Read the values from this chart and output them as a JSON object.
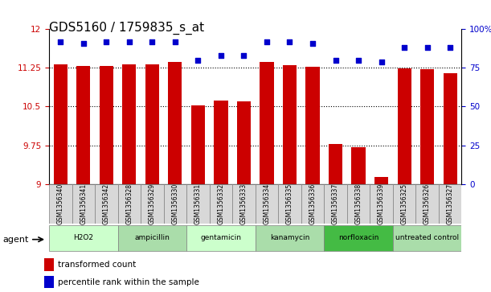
{
  "title": "GDS5160 / 1759835_s_at",
  "samples": [
    "GSM1356340",
    "GSM1356341",
    "GSM1356342",
    "GSM1356328",
    "GSM1356329",
    "GSM1356330",
    "GSM1356331",
    "GSM1356332",
    "GSM1356333",
    "GSM1356334",
    "GSM1356335",
    "GSM1356336",
    "GSM1356337",
    "GSM1356338",
    "GSM1356339",
    "GSM1356325",
    "GSM1356326",
    "GSM1356327"
  ],
  "bar_values": [
    11.32,
    11.28,
    11.28,
    11.32,
    11.32,
    11.36,
    10.52,
    10.62,
    10.6,
    11.36,
    11.3,
    11.27,
    9.78,
    9.72,
    9.14,
    11.24,
    11.22,
    11.15
  ],
  "percentile_values": [
    92,
    91,
    92,
    92,
    92,
    92,
    80,
    83,
    83,
    92,
    92,
    91,
    80,
    80,
    79,
    88,
    88,
    88
  ],
  "groups": [
    {
      "label": "H2O2",
      "start": 0,
      "end": 3,
      "color": "#ccffcc"
    },
    {
      "label": "ampicillin",
      "start": 3,
      "end": 6,
      "color": "#aaddaa"
    },
    {
      "label": "gentamicin",
      "start": 6,
      "end": 9,
      "color": "#ccffcc"
    },
    {
      "label": "kanamycin",
      "start": 9,
      "end": 12,
      "color": "#aaddaa"
    },
    {
      "label": "norfloxacin",
      "start": 12,
      "end": 15,
      "color": "#44bb44"
    },
    {
      "label": "untreated control",
      "start": 15,
      "end": 18,
      "color": "#aaddaa"
    }
  ],
  "bar_color": "#cc0000",
  "dot_color": "#0000cc",
  "ylim_left": [
    9.0,
    12.0
  ],
  "ylim_right": [
    0,
    100
  ],
  "yticks_left": [
    9.0,
    9.75,
    10.5,
    11.25,
    12.0
  ],
  "ytick_labels_left": [
    "9",
    "9.75",
    "10.5",
    "11.25",
    "12"
  ],
  "yticks_right": [
    0,
    25,
    50,
    75,
    100
  ],
  "ytick_labels_right": [
    "0",
    "25",
    "50",
    "75",
    "100%"
  ],
  "dotted_lines": [
    9.75,
    10.5,
    11.25
  ],
  "legend_bar_label": "transformed count",
  "legend_dot_label": "percentile rank within the sample",
  "agent_label": "agent",
  "title_fontsize": 11,
  "tick_fontsize": 7.5,
  "group_label_fontsize": 8,
  "bar_width": 0.6
}
